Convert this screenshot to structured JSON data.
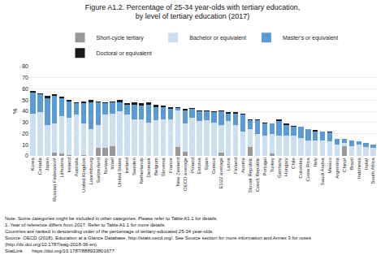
{
  "chart_data": {
    "type": "bar",
    "stacked": true,
    "title": "Figure A1.2. Percentage of 25-34 year-olds with tertiary education,",
    "subtitle": "by level of tertiary education (2017)",
    "ylabel": "%",
    "categories": [
      "Korea",
      "Canada",
      "Japan",
      "Russian\nFederation¹",
      "Lithuania",
      "Ireland",
      "Australia",
      "United\nKingdom",
      "Luxembourg",
      "Switzerland",
      "Norway",
      "Israel",
      "United States",
      "Iceland",
      "Sweden",
      "Netherlands",
      "Denmark",
      "Belgium",
      "Slovenia",
      "France",
      "New Zealand",
      "OECD average",
      "Poland",
      "Estonia",
      "Spain",
      "Greece",
      "EU22\naverage",
      "Latvia",
      "Finland",
      "Austria",
      "Slovak\nRepublic",
      "Czech\nRepublic",
      "Portugal",
      "Turkey",
      "Germany",
      "Hungary",
      "Chile",
      "Colombia",
      "Costa Rica",
      "Italy",
      "Saudi Arabia",
      "Mexico",
      "Argentina",
      "China¹",
      "Brazil",
      "Indonesia",
      "India¹",
      "South Africa"
    ],
    "series": [
      {
        "name": "Short-cycle tertiary",
        "color": "#999999",
        "values": [
          0,
          0,
          0,
          3,
          2,
          1,
          0,
          1,
          0,
          7,
          7,
          9,
          0,
          0,
          0,
          0,
          0,
          0,
          0,
          0,
          8,
          4,
          0,
          0,
          0,
          0,
          3,
          0,
          0,
          0,
          8,
          0,
          0,
          2,
          0,
          0,
          0,
          0,
          0,
          0,
          0,
          0,
          0,
          9,
          0,
          0,
          0,
          0
        ]
      },
      {
        "name": "Bachelor or equivalent",
        "color": "#ccdff0",
        "values": [
          38,
          39,
          28,
          26,
          34,
          33,
          37,
          28,
          24,
          21,
          30,
          29,
          40,
          37,
          33,
          33,
          30,
          32,
          33,
          33,
          33,
          25,
          34,
          31,
          32,
          30,
          25,
          31,
          28,
          22,
          16,
          20,
          18,
          18,
          18,
          18,
          18,
          16,
          14,
          14,
          14,
          13,
          10,
          3,
          9,
          10,
          8,
          7
        ]
      },
      {
        "name": "Master's or equivalent",
        "color": "#5b9bd5",
        "values": [
          19,
          16,
          24,
          25,
          16,
          15,
          10,
          18,
          24,
          20,
          10,
          10,
          8,
          9,
          13,
          12,
          16,
          12,
          11,
          9,
          2,
          12,
          8,
          9,
          8,
          9,
          12,
          7,
          10,
          15,
          8,
          12,
          11,
          9,
          13,
          10,
          8,
          10,
          10,
          8,
          8,
          8,
          5,
          3,
          5,
          3,
          4,
          3
        ]
      },
      {
        "name": "Doctoral or equivalent",
        "color": "#1a1a1a",
        "values": [
          1,
          1,
          2,
          1,
          1,
          1,
          1,
          2,
          2,
          1,
          1,
          1,
          2,
          1,
          2,
          2,
          2,
          2,
          1,
          2,
          1,
          1,
          1,
          1,
          1,
          1,
          1,
          1,
          1,
          1,
          1,
          1,
          1,
          0,
          2,
          1,
          1,
          0,
          0,
          1,
          0,
          1,
          0,
          0,
          0,
          0,
          0,
          0
        ]
      }
    ],
    "ylim": [
      0,
      80
    ],
    "yticks": [
      0,
      10,
      20,
      30,
      40,
      50,
      60,
      70,
      80
    ],
    "grid": true,
    "legend": "top",
    "annotations": [
      "Note: Some categories might be included in other categories. Please refer to Table A1.1 for details.",
      "1. Year of reference differs from 2017. Refer to Table A1.1 for more details.",
      "Countries are ranked in descending order of the percentage of tertiary-educated 25-34 year-olds.",
      "Source: OECD (2018), Education at a Glance Database, http://stats.oecd.org/. See Source section for more information and Annex 3 for notes",
      "(http://dx.doi.org/10.1787/eag-2018-36-en).",
      "StatLink       https://doi.org/10.1787/888933801677"
    ]
  }
}
